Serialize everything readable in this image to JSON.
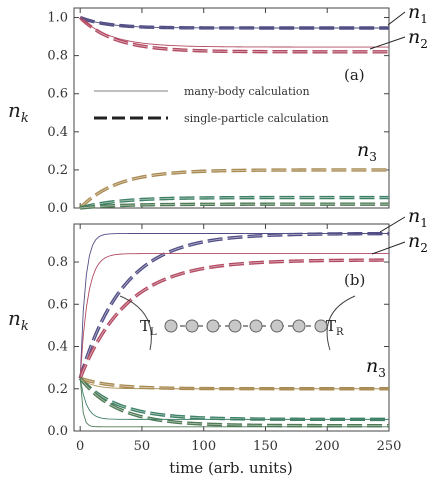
{
  "chart_data": [
    {
      "panel": "(a)",
      "type": "line",
      "xlim": [
        -5,
        250
      ],
      "ylim": [
        0,
        1.05
      ],
      "xticks": [
        0,
        50,
        100,
        150,
        200,
        250
      ],
      "yticks": [
        "0.0",
        "0.2",
        "0.4",
        "0.6",
        "0.8",
        "1.0"
      ],
      "ylabel": "n",
      "ylabel_sub": "k",
      "legend": [
        {
          "label": "many-body calculation",
          "style": "solid"
        },
        {
          "label": "single-particle calculation",
          "style": "dashed"
        }
      ],
      "series_labels": [
        {
          "text": "n",
          "sub": "1",
          "series": 0
        },
        {
          "text": "n",
          "sub": "2",
          "series": 1
        },
        {
          "text": "n",
          "sub": "3",
          "series": 2
        }
      ],
      "series": [
        {
          "color": "#524f86",
          "style": "dashed",
          "start": 1.0,
          "end": 0.945,
          "tau": 22
        },
        {
          "color": "#b24a62",
          "style": "dashed",
          "start": 1.0,
          "end": 0.82,
          "tau": 28
        },
        {
          "color": "#a98b52",
          "style": "dashed",
          "start": 0.0,
          "end": 0.2,
          "tau": 30
        },
        {
          "color": "#3f8167",
          "style": "dashed",
          "start": 0.0,
          "end": 0.055,
          "tau": 30
        },
        {
          "color": "#4e7a55",
          "style": "dashed",
          "start": 0.0,
          "end": 0.02,
          "tau": 30
        },
        {
          "color": "#b24a62",
          "style": "solid",
          "start": 1.0,
          "end": 0.845,
          "tau": 25
        },
        {
          "color": "#524f86",
          "style": "solid",
          "start": 1.0,
          "end": 0.945,
          "tau": 22
        }
      ]
    },
    {
      "panel": "(b)",
      "type": "line",
      "xlim": [
        -5,
        250
      ],
      "ylim": [
        0,
        0.98
      ],
      "xticks": [
        0,
        50,
        100,
        150,
        200,
        250
      ],
      "xticklabels": [
        "0",
        "50",
        "100",
        "150",
        "200",
        "250"
      ],
      "yticks": [
        "0.0",
        "0.2",
        "0.4",
        "0.6",
        "0.8"
      ],
      "xlabel": "time (arb. units)",
      "ylabel": "n",
      "ylabel_sub": "k",
      "series_labels": [
        {
          "text": "n",
          "sub": "1",
          "series": 0
        },
        {
          "text": "n",
          "sub": "2",
          "series": 1
        },
        {
          "text": "n",
          "sub": "3",
          "series": 2
        }
      ],
      "inset_labels": {
        "left": "T",
        "left_sub": "L",
        "right": "T",
        "right_sub": "R"
      },
      "series": [
        {
          "color": "#524f86",
          "style": "dashed",
          "start": 0.25,
          "end": 0.935,
          "tau": 35
        },
        {
          "color": "#b24a62",
          "style": "dashed",
          "start": 0.25,
          "end": 0.81,
          "tau": 38
        },
        {
          "color": "#a98b52",
          "style": "dashed",
          "start": 0.25,
          "end": 0.2,
          "tau": 25
        },
        {
          "color": "#3f8167",
          "style": "dashed",
          "start": 0.25,
          "end": 0.055,
          "tau": 30
        },
        {
          "color": "#4e7a55",
          "style": "dashed",
          "start": 0.25,
          "end": 0.025,
          "tau": 30
        },
        {
          "color": "#524f86",
          "style": "solid",
          "start": 0.25,
          "end": 0.935,
          "tau": 4
        },
        {
          "color": "#b24a62",
          "style": "solid",
          "start": 0.25,
          "end": 0.84,
          "tau": 6
        },
        {
          "color": "#a98b52",
          "style": "solid",
          "start": 0.25,
          "end": 0.2,
          "tau": 10
        },
        {
          "color": "#3f8167",
          "style": "solid",
          "start": 0.25,
          "end": 0.055,
          "tau": 5
        },
        {
          "color": "#4e7a55",
          "style": "solid",
          "start": 0.25,
          "end": 0.02,
          "tau": 2
        }
      ]
    }
  ]
}
